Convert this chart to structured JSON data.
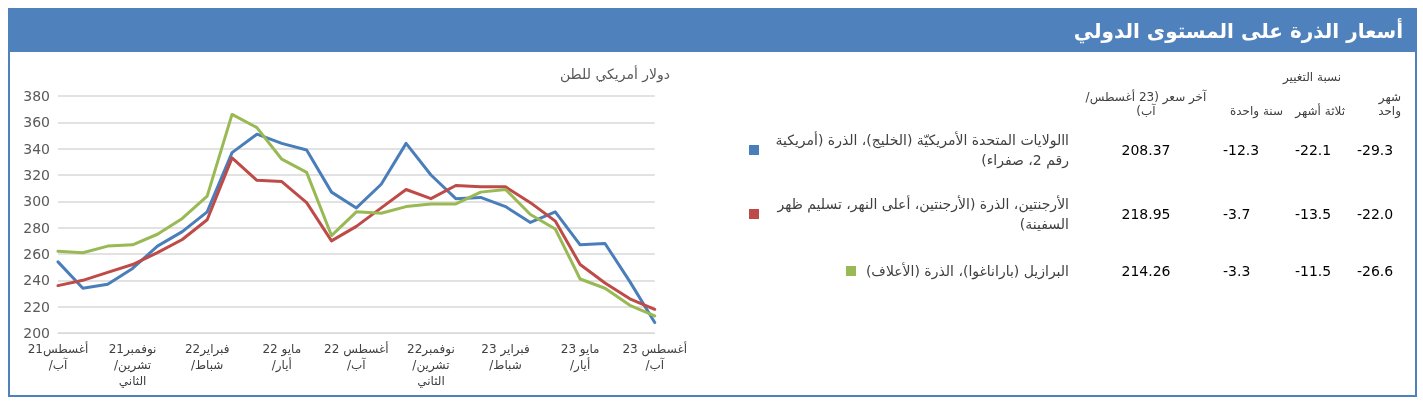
{
  "chart_data": {
    "type": "line",
    "title": "أسعار الذرة على المستوى الدولي",
    "ylabel": "دولار أمريكي للطن",
    "categories": [
      "21أغسطس/آب",
      null,
      null,
      "21نوفمبر/تشرين الثاني",
      null,
      null,
      "22فبراير/شباط",
      null,
      null,
      "22 مايو/أيار",
      null,
      null,
      "22 أغسطس/آب",
      null,
      null,
      "22نوفمبر/تشرين الثاني",
      null,
      null,
      "23 فبراير/شباط",
      null,
      null,
      "23 مايو/أيار",
      null,
      null,
      "23 أغسطس/آب"
    ],
    "series": [
      {
        "name": "االولايات المتحدة الأمريكيّة (الخليج)، الذرة (أمريكية رقم 2، صفراء)",
        "color": "#4a7ebb",
        "values": [
          254,
          234,
          237,
          249,
          266,
          277,
          292,
          337,
          351,
          344,
          339,
          307,
          295,
          313,
          344,
          320,
          302,
          303,
          296,
          284,
          292,
          267,
          268,
          239,
          208
        ]
      },
      {
        "name": "الأرجنتين، الذرة (الأرجنتين، أعلى النهر، تسليم ظهر السفينة)",
        "color": "#be4b48",
        "values": [
          236,
          240,
          246,
          252,
          261,
          271,
          286,
          333,
          316,
          315,
          299,
          270,
          281,
          295,
          309,
          302,
          312,
          311,
          311,
          299,
          285,
          252,
          238,
          226,
          218
        ]
      },
      {
        "name": "البرازيل (باراناغوا)، الذرة (الأعلاف)",
        "color": "#98b954",
        "values": [
          262,
          261,
          266,
          267,
          275,
          287,
          304,
          366,
          356,
          332,
          322,
          274,
          292,
          291,
          296,
          298,
          298,
          307,
          309,
          290,
          279,
          241,
          234,
          221,
          213
        ]
      }
    ],
    "ylim": [
      200,
      380
    ],
    "yticks": [
      200,
      220,
      240,
      260,
      280,
      300,
      320,
      340,
      360,
      380
    ],
    "grid": "y",
    "legend": "right",
    "marker": "none",
    "line_style": "solid",
    "annotations": [
      "نسبة التغيير",
      "شهر واحد",
      "ثلاثة أشهر",
      "سنة واحدة",
      "آخر سعر (23 أغسطس/آب)",
      "-29.3",
      "-22.1",
      "-12.3",
      "208.37",
      "-22.0",
      "-13.5",
      "-3.7",
      "218.95",
      "-26.6",
      "-11.5",
      "-3.3",
      "214.26"
    ]
  }
}
